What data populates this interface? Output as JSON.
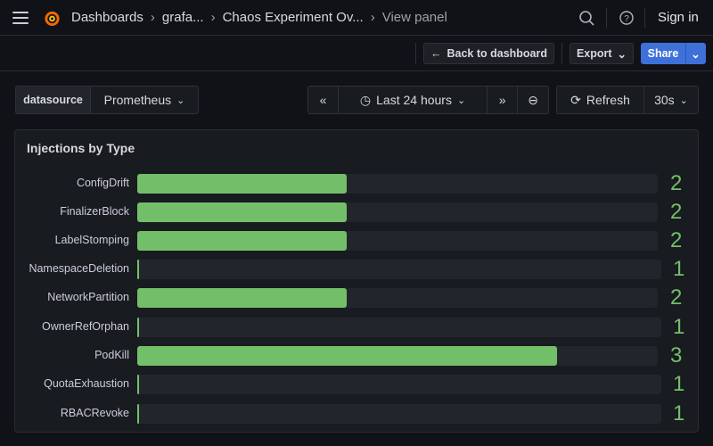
{
  "header": {
    "breadcrumbs": [
      "Dashboards",
      "grafa...",
      "Chaos Experiment Ov...",
      "View panel"
    ],
    "sign_in": "Sign in",
    "icons": [
      "menu-icon",
      "grafana-logo",
      "search-icon",
      "help-icon"
    ]
  },
  "toolbar": {
    "back": "Back to dashboard",
    "export": "Export",
    "share": "Share"
  },
  "controls": {
    "variable_label": "datasource",
    "variable_value": "Prometheus",
    "time_range": "Last 24 hours",
    "refresh": "Refresh",
    "interval": "30s"
  },
  "panel": {
    "title": "Injections by Type"
  },
  "colors": {
    "bar": "#73bf69",
    "accent": "#3d71d9"
  },
  "chart_data": {
    "type": "bar",
    "orientation": "horizontal",
    "title": "Injections by Type",
    "categories": [
      "ConfigDrift",
      "FinalizerBlock",
      "LabelStomping",
      "NamespaceDeletion",
      "NetworkPartition",
      "OwnerRefOrphan",
      "PodKill",
      "QuotaExhaustion",
      "RBACRevoke"
    ],
    "values": [
      2,
      2,
      2,
      1,
      2,
      1,
      3,
      1,
      1
    ],
    "value_labels": [
      "2",
      "2",
      "2",
      "1",
      "2",
      "1",
      "3",
      "1",
      "1"
    ]
  }
}
